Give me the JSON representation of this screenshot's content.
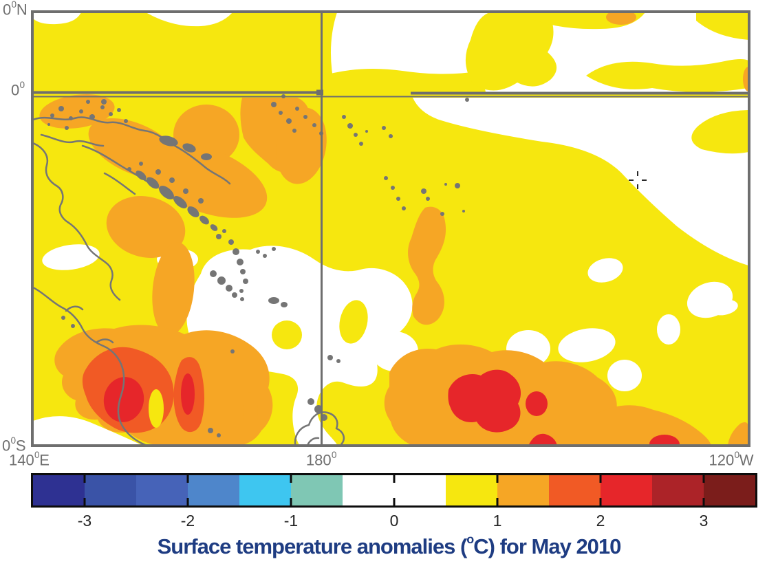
{
  "title": {
    "prefix": "Surface temperature anomalies (",
    "degree": "o",
    "suffix": "C) for May 2010"
  },
  "axis": {
    "lat_top": {
      "value": "0",
      "degree": "0",
      "hemisphere": "N"
    },
    "lat_equator": {
      "value": "0",
      "degree": "0",
      "hemisphere": ""
    },
    "lat_bottom": {
      "value": "0",
      "degree": "0",
      "hemisphere": "S"
    },
    "lon_left": {
      "value": "140",
      "degree": "0",
      "hemisphere": "E"
    },
    "lon_center": {
      "value": "180",
      "degree": "0",
      "hemisphere": ""
    },
    "lon_right": {
      "value": "120",
      "degree": "0",
      "hemisphere": "W"
    }
  },
  "colorbar": {
    "tick_labels": [
      "-3",
      "-2",
      "-1",
      "0",
      "1",
      "2",
      "3"
    ],
    "segment_colors": [
      "#2E3192",
      "#3A53A7",
      "#4663B8",
      "#4E86CB",
      "#3EC6F0",
      "#7FC7B4",
      "#FFFFFF",
      "#FFFFFF",
      "#F6E70F",
      "#F6A625",
      "#F15A25",
      "#E6262A",
      "#AC2328",
      "#7B1D1B"
    ]
  },
  "colors": {
    "anomaly_neutral": "#FFFFFF",
    "anomaly_yellow": "#F6E70F",
    "anomaly_orange": "#F6A625",
    "anomaly_deep_orange": "#F15A25",
    "anomaly_red": "#E6262A",
    "grid_gray": "#6E6E6E",
    "coast_gray": "#757575",
    "cursor_black": "#111111",
    "title_blue": "#1E3C82"
  }
}
